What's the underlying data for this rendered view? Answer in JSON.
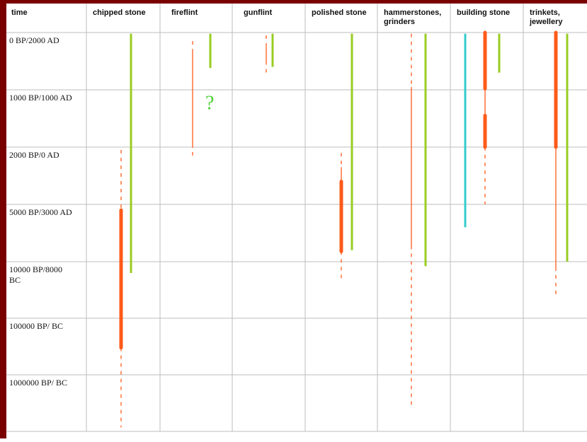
{
  "chart_data": {
    "type": "range",
    "columns": [
      {
        "key": "time",
        "label": [
          "time"
        ]
      },
      {
        "key": "chipped",
        "label": [
          "chipped stone"
        ]
      },
      {
        "key": "fireflint",
        "label": [
          "fireflint"
        ]
      },
      {
        "key": "gunflint",
        "label": [
          "gunflint"
        ]
      },
      {
        "key": "polished",
        "label": [
          "polished stone"
        ]
      },
      {
        "key": "hammer",
        "label": [
          "hammerstones,",
          "grinders"
        ]
      },
      {
        "key": "building",
        "label": [
          "building stone"
        ]
      },
      {
        "key": "trinkets",
        "label": [
          "trinkets,",
          "jewellery"
        ]
      }
    ],
    "time_rows": [
      [
        "0 BP/2000 AD"
      ],
      [
        "1000 BP/1000 AD"
      ],
      [
        "2000 BP/0 AD"
      ],
      [
        "5000 BP/3000 AD"
      ],
      [
        "10000 BP/8000",
        "BC"
      ],
      [
        "100000 BP/ BC"
      ],
      [
        "1000000 BP/ BC"
      ]
    ],
    "row_unit_note": "ranges below are expressed in time-row units: 0 = '0 BP/2000 AD' row top, 7 = bottom of table",
    "colors": {
      "orange": "#ff5a1a",
      "green": "#99cc22",
      "cyan": "#33cccc",
      "question": "#4cd134",
      "frame": "#7a0000",
      "grid": "#bdbdbd"
    },
    "series": [
      {
        "column": "chipped",
        "color": "orange",
        "segments": [
          {
            "from": 2.05,
            "to": 3.1,
            "style": "dashed"
          },
          {
            "from": 3.1,
            "to": 5.52,
            "style": "thick"
          },
          {
            "from": 5.52,
            "to": 6.93,
            "style": "dashed"
          }
        ]
      },
      {
        "column": "chipped",
        "color": "green",
        "segments": [
          {
            "from": 0.02,
            "to": 4.2,
            "style": "solid"
          }
        ]
      },
      {
        "column": "fireflint",
        "color": "orange",
        "segments": [
          {
            "from": 0.15,
            "to": 0.3,
            "style": "dashed"
          },
          {
            "from": 0.3,
            "to": 1.95,
            "style": "thin"
          },
          {
            "from": 1.95,
            "to": 2.2,
            "style": "dashed"
          }
        ]
      },
      {
        "column": "fireflint",
        "color": "green",
        "segments": [
          {
            "from": 0.02,
            "to": 0.62,
            "style": "solid"
          }
        ]
      },
      {
        "column": "gunflint",
        "color": "orange",
        "segments": [
          {
            "from": 0.05,
            "to": 0.25,
            "style": "dashed"
          },
          {
            "from": 0.25,
            "to": 0.5,
            "style": "thin"
          },
          {
            "from": 0.5,
            "to": 0.72,
            "style": "dashed"
          }
        ]
      },
      {
        "column": "gunflint",
        "color": "green",
        "segments": [
          {
            "from": 0.02,
            "to": 0.6,
            "style": "solid"
          }
        ]
      },
      {
        "column": "polished",
        "color": "orange",
        "segments": [
          {
            "from": 2.1,
            "to": 2.35,
            "style": "dashed"
          },
          {
            "from": 2.35,
            "to": 2.6,
            "style": "thin"
          },
          {
            "from": 2.6,
            "to": 3.82,
            "style": "thick"
          },
          {
            "from": 3.82,
            "to": 4.3,
            "style": "dashed"
          }
        ]
      },
      {
        "column": "polished",
        "color": "green",
        "segments": [
          {
            "from": 0.02,
            "to": 3.8,
            "style": "solid"
          }
        ]
      },
      {
        "column": "hammer",
        "color": "orange",
        "segments": [
          {
            "from": 0.02,
            "to": 0.95,
            "style": "dashed"
          },
          {
            "from": 0.95,
            "to": 3.72,
            "style": "thin"
          },
          {
            "from": 3.72,
            "to": 6.6,
            "style": "dashed"
          }
        ]
      },
      {
        "column": "hammer",
        "color": "green",
        "segments": [
          {
            "from": 0.02,
            "to": 4.08,
            "style": "solid"
          }
        ]
      },
      {
        "column": "building",
        "color": "cyan",
        "segments": [
          {
            "from": 0.02,
            "to": 3.4,
            "style": "solid"
          }
        ]
      },
      {
        "column": "building",
        "color": "orange",
        "segments": [
          {
            "from": 0.0,
            "to": 0.98,
            "style": "thick"
          },
          {
            "from": 0.98,
            "to": 1.45,
            "style": "thin"
          },
          {
            "from": 1.45,
            "to": 2.0,
            "style": "thick"
          },
          {
            "from": 2.0,
            "to": 3.0,
            "style": "dashed"
          }
        ]
      },
      {
        "column": "building",
        "color": "green",
        "segments": [
          {
            "from": 0.02,
            "to": 0.7,
            "style": "solid"
          }
        ]
      },
      {
        "column": "trinkets",
        "color": "orange",
        "segments": [
          {
            "from": 0.0,
            "to": 2.0,
            "style": "thick"
          },
          {
            "from": 2.0,
            "to": 4.1,
            "style": "thin"
          },
          {
            "from": 4.1,
            "to": 4.6,
            "style": "dashed"
          }
        ]
      },
      {
        "column": "trinkets",
        "color": "green",
        "segments": [
          {
            "from": 0.02,
            "to": 4.0,
            "style": "solid"
          }
        ]
      }
    ],
    "annotations": [
      {
        "column": "fireflint",
        "row": 1.25,
        "text": "?"
      }
    ]
  }
}
